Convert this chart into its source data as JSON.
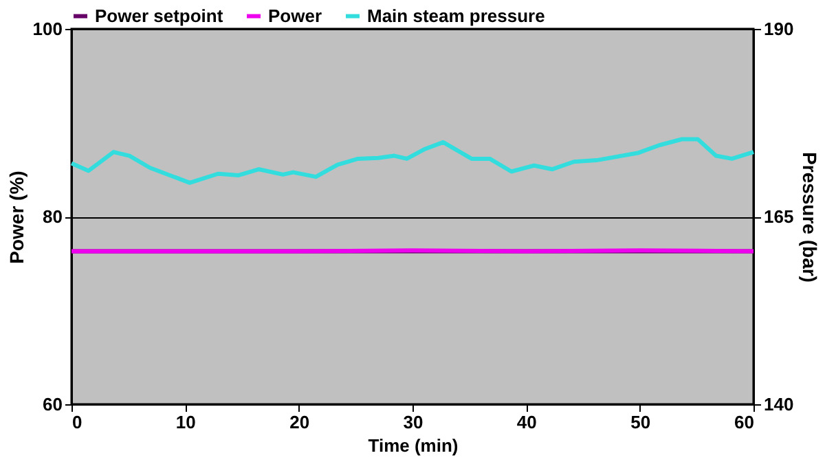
{
  "chart_data": {
    "type": "line",
    "xlabel": "Time (min)",
    "ylabel": "Power (%)",
    "y2label": "Pressure (bar)",
    "xlim": [
      0,
      60
    ],
    "xticks": [
      0,
      10,
      20,
      30,
      40,
      50,
      60
    ],
    "ylim": [
      60,
      100
    ],
    "yticks": [
      60,
      80,
      100
    ],
    "y2lim": [
      140,
      190
    ],
    "y2ticks": [
      140,
      165,
      190
    ],
    "grid": "y",
    "legend": "top",
    "line_style": "solid",
    "marker": "none",
    "series": [
      {
        "name": "Power setpoint",
        "color": "#660066",
        "x": [
          0,
          60
        ],
        "values": [
          76.3,
          76.3
        ]
      },
      {
        "name": "Power",
        "color": "#ee00ee",
        "x": [
          0,
          10,
          20,
          30,
          40,
          50,
          60
        ],
        "values": [
          76.3,
          76.3,
          76.3,
          76.4,
          76.3,
          76.4,
          76.3
        ]
      },
      {
        "name": "Main steam pressure",
        "color": "#33dddd",
        "axis": "y2",
        "x": [
          0,
          1.5,
          3.7,
          5.1,
          6.9,
          10.4,
          12.9,
          14.7,
          16.5,
          18.6,
          19.5,
          21.5,
          23.4,
          25.2,
          27.0,
          28.4,
          29.5,
          31.1,
          32.7,
          35.2,
          36.8,
          38.7,
          40.7,
          42.3,
          44.2,
          46.2,
          49.9,
          51.7,
          53.7,
          55.1,
          56.7,
          58.1,
          60
        ],
        "values": [
          172.1,
          171.1,
          173.6,
          173.1,
          171.5,
          169.5,
          170.7,
          170.5,
          171.3,
          170.6,
          170.9,
          170.3,
          171.9,
          172.7,
          172.8,
          173.1,
          172.7,
          174.0,
          174.9,
          172.7,
          172.7,
          171.0,
          171.8,
          171.3,
          172.3,
          172.5,
          173.5,
          174.5,
          175.3,
          175.3,
          173.1,
          172.7,
          173.6
        ]
      }
    ]
  }
}
